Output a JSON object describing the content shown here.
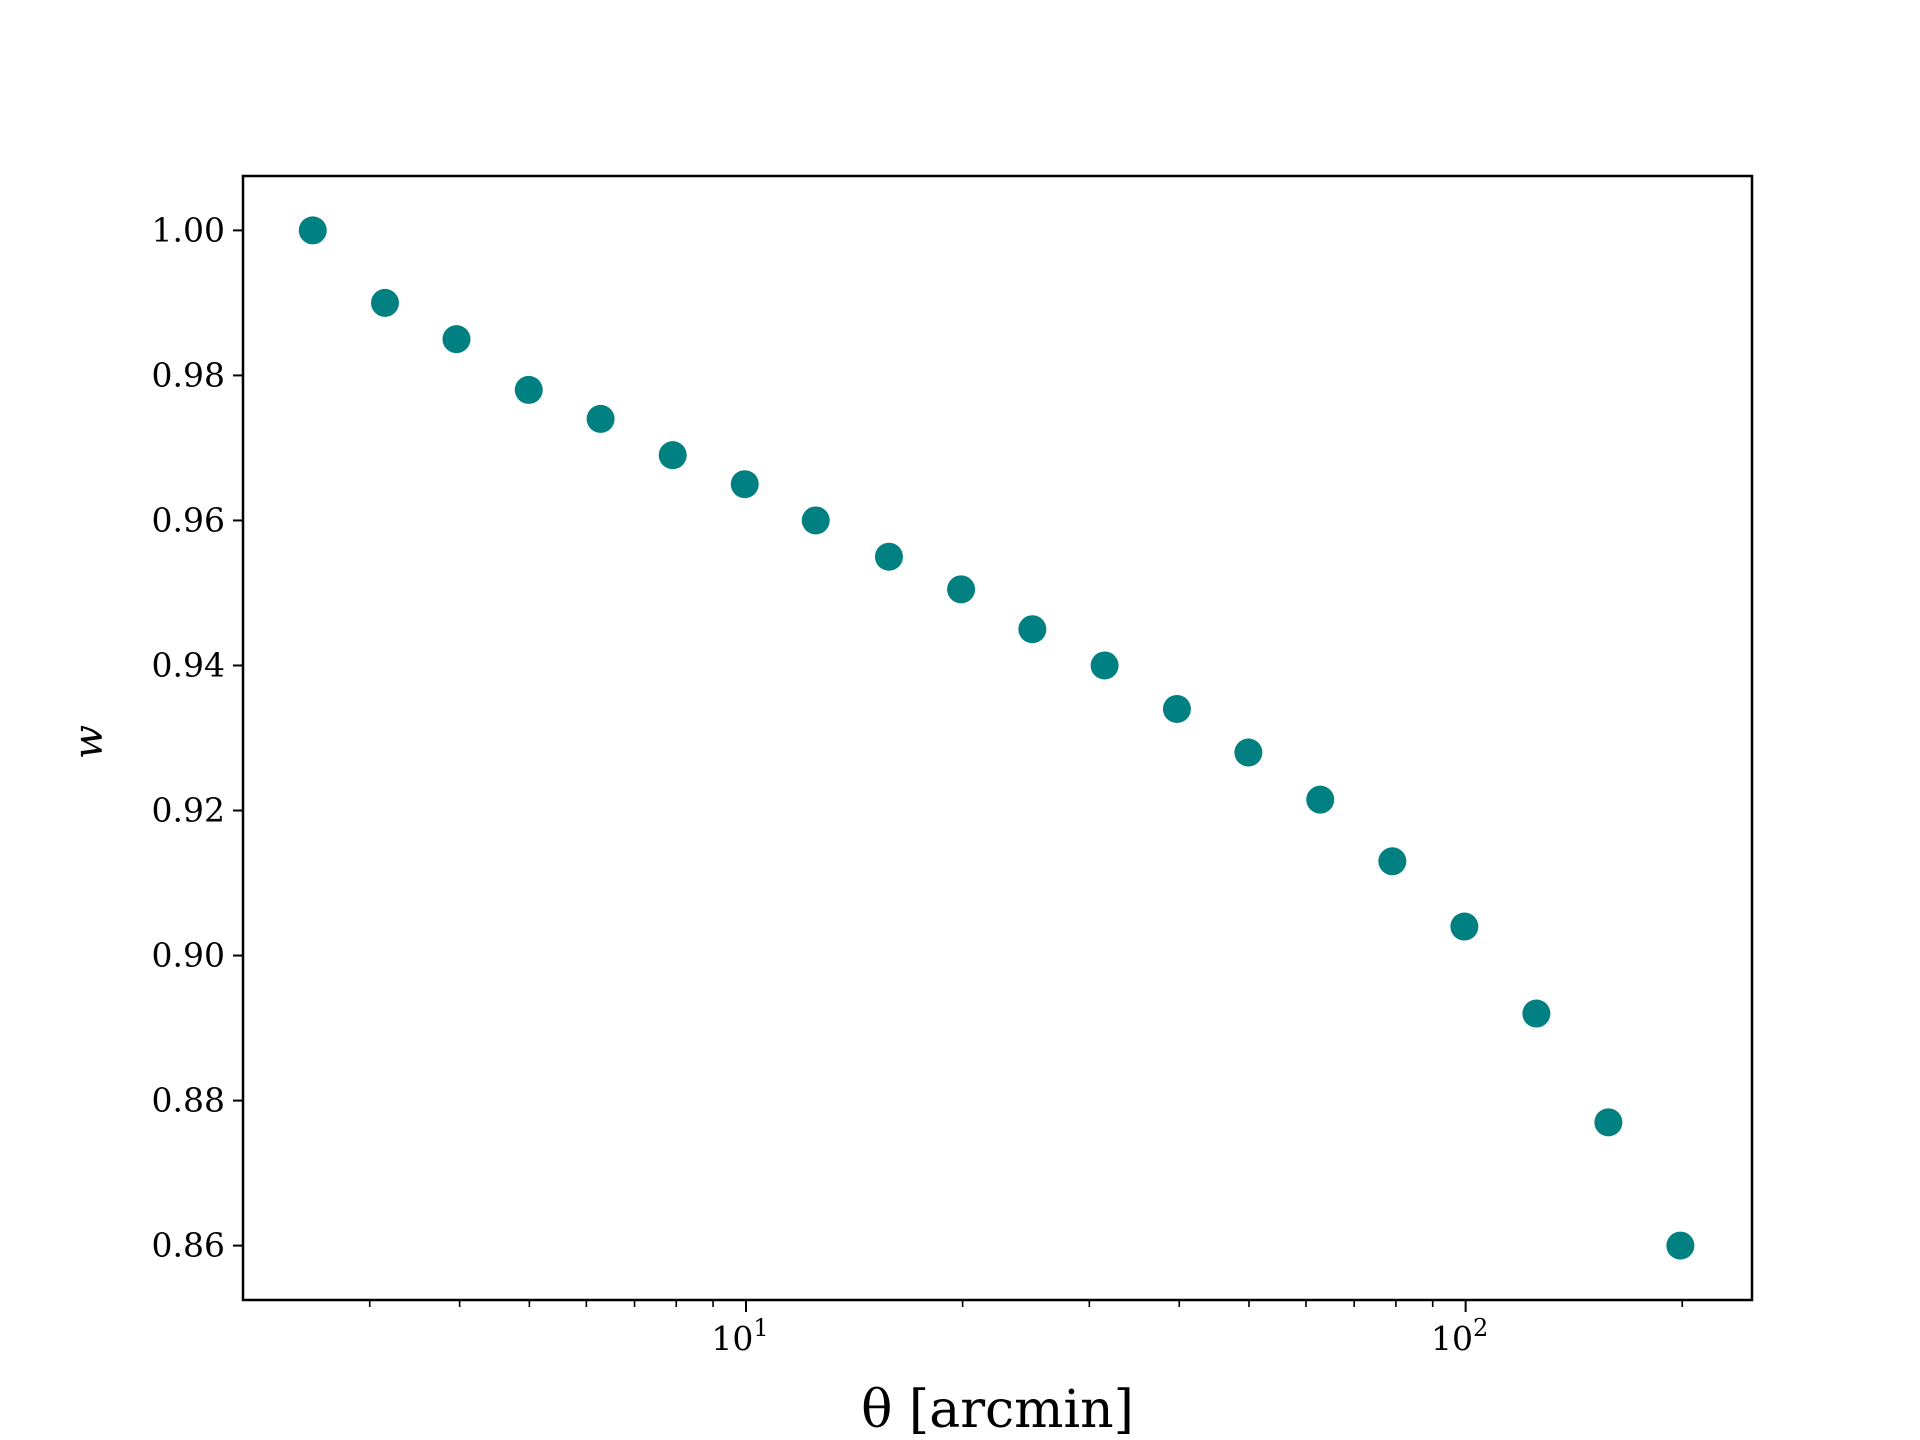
{
  "chart_data": {
    "type": "scatter",
    "xscale": "log",
    "xlabel": "θ [arcmin]",
    "ylabel": "w",
    "xlim": [
      2.0,
      250.0
    ],
    "ylim": [
      0.8525,
      1.0075
    ],
    "yticks": [
      1.0,
      0.98,
      0.96,
      0.94,
      0.92,
      0.9,
      0.88,
      0.86
    ],
    "ytick_labels": [
      "1.00",
      "0.98",
      "0.96",
      "0.94",
      "0.92",
      "0.90",
      "0.88",
      "0.86"
    ],
    "xticks_major": [
      {
        "value": 10,
        "base": "10",
        "exp": "1"
      },
      {
        "value": 100,
        "base": "10",
        "exp": "2"
      }
    ],
    "xticks_minor": [
      3,
      4,
      5,
      6,
      7,
      8,
      9,
      20,
      30,
      40,
      50,
      60,
      70,
      80,
      90,
      200
    ],
    "grid": false,
    "marker_color": "#008080",
    "points": [
      {
        "x": 2.5,
        "y": 1.0
      },
      {
        "x": 3.15,
        "y": 0.99
      },
      {
        "x": 3.96,
        "y": 0.985
      },
      {
        "x": 4.99,
        "y": 0.978
      },
      {
        "x": 6.28,
        "y": 0.974
      },
      {
        "x": 7.91,
        "y": 0.969
      },
      {
        "x": 9.96,
        "y": 0.965
      },
      {
        "x": 12.5,
        "y": 0.96
      },
      {
        "x": 15.8,
        "y": 0.955
      },
      {
        "x": 19.9,
        "y": 0.9505
      },
      {
        "x": 25.0,
        "y": 0.945
      },
      {
        "x": 31.5,
        "y": 0.94
      },
      {
        "x": 39.7,
        "y": 0.934
      },
      {
        "x": 49.9,
        "y": 0.928
      },
      {
        "x": 62.8,
        "y": 0.9215
      },
      {
        "x": 79.1,
        "y": 0.913
      },
      {
        "x": 99.6,
        "y": 0.904
      },
      {
        "x": 125.4,
        "y": 0.892
      },
      {
        "x": 157.9,
        "y": 0.877
      },
      {
        "x": 198.8,
        "y": 0.86
      }
    ]
  }
}
